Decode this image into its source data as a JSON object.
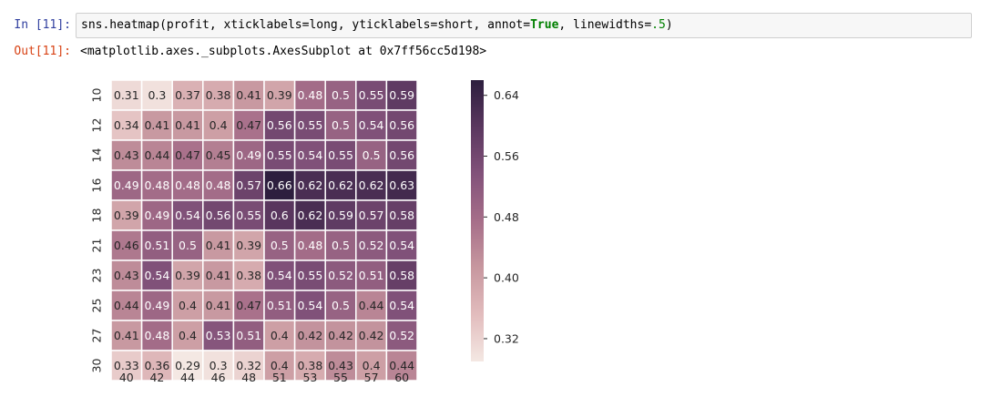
{
  "input_prompt": "In [11]:",
  "output_prompt": "Out[11]:",
  "code": {
    "prefix": "sns.heatmap(profit, xticklabels=long, yticklabels=short, annot=",
    "keyword_true": "True",
    "middle": ", linewidths=",
    "number": ".5",
    "suffix": ")"
  },
  "output_repr": "<matplotlib.axes._subplots.AxesSubplot at 0x7ff56cc5d198>",
  "chart_data": {
    "type": "heatmap",
    "x_ticklabels": [
      "40",
      "42",
      "44",
      "46",
      "48",
      "51",
      "53",
      "55",
      "57",
      "60"
    ],
    "y_ticklabels": [
      "10",
      "12",
      "14",
      "16",
      "18",
      "21",
      "23",
      "25",
      "27",
      "30"
    ],
    "values": [
      [
        0.31,
        0.3,
        0.37,
        0.38,
        0.41,
        0.39,
        0.48,
        0.5,
        0.55,
        0.59
      ],
      [
        0.34,
        0.41,
        0.41,
        0.4,
        0.47,
        0.56,
        0.55,
        0.5,
        0.54,
        0.56
      ],
      [
        0.43,
        0.44,
        0.47,
        0.45,
        0.49,
        0.55,
        0.54,
        0.55,
        0.5,
        0.56
      ],
      [
        0.49,
        0.48,
        0.48,
        0.48,
        0.57,
        0.66,
        0.62,
        0.62,
        0.62,
        0.63
      ],
      [
        0.39,
        0.49,
        0.54,
        0.56,
        0.55,
        0.6,
        0.62,
        0.59,
        0.57,
        0.58
      ],
      [
        0.46,
        0.51,
        0.5,
        0.41,
        0.39,
        0.5,
        0.48,
        0.5,
        0.52,
        0.54
      ],
      [
        0.43,
        0.54,
        0.39,
        0.41,
        0.38,
        0.54,
        0.55,
        0.52,
        0.51,
        0.58
      ],
      [
        0.44,
        0.49,
        0.4,
        0.41,
        0.47,
        0.51,
        0.54,
        0.5,
        0.44,
        0.54
      ],
      [
        0.41,
        0.48,
        0.4,
        0.53,
        0.51,
        0.4,
        0.42,
        0.42,
        0.42,
        0.52
      ],
      [
        0.33,
        0.36,
        0.29,
        0.3,
        0.32,
        0.4,
        0.38,
        0.43,
        0.4,
        0.44
      ]
    ],
    "vmin": 0.29,
    "vmax": 0.66,
    "colorbar_ticks": [
      "0.64",
      "0.56",
      "0.48",
      "0.40",
      "0.32"
    ],
    "colorbar_tick_values": [
      0.64,
      0.56,
      0.48,
      0.4,
      0.32
    ],
    "colormap_stops": [
      "#f4e8e3",
      "#e2bcbd",
      "#c7979f",
      "#a66e89",
      "#82527a",
      "#5a375f",
      "#2d1e3e"
    ],
    "linecolor": "#ffffff",
    "annot": true,
    "grid": false
  }
}
